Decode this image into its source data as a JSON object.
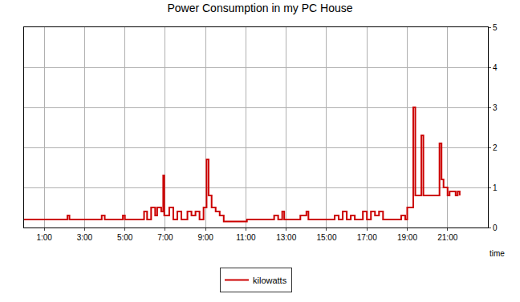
{
  "chart_data": {
    "type": "line",
    "title": "Power Consumption in my PC House",
    "x_label": "time",
    "x": [
      0,
      2.1,
      2.15,
      2.25,
      3.8,
      3.85,
      4.0,
      4.9,
      5.0,
      5.9,
      5.95,
      6.1,
      6.3,
      6.5,
      6.6,
      6.8,
      6.9,
      6.95,
      7.2,
      7.4,
      7.6,
      7.8,
      8.1,
      8.3,
      8.5,
      8.7,
      8.9,
      9.05,
      9.15,
      9.3,
      9.5,
      9.7,
      9.9,
      11.0,
      11.05,
      12.3,
      12.4,
      12.6,
      12.8,
      12.9,
      13.6,
      13.7,
      14.0,
      14.1,
      15.3,
      15.4,
      15.6,
      15.8,
      16.0,
      16.2,
      16.4,
      16.8,
      17.0,
      17.2,
      17.4,
      17.6,
      17.8,
      18.5,
      18.7,
      18.9,
      19.0,
      19.2,
      19.3,
      19.4,
      19.6,
      19.7,
      19.8,
      20.5,
      20.6,
      20.7,
      20.8,
      20.9,
      21.0,
      21.1,
      21.3,
      21.4,
      21.5,
      21.6
    ],
    "series": [
      {
        "name": "kilowatts",
        "color": "#cc0000",
        "values": [
          0.2,
          0.2,
          0.3,
          0.2,
          0.2,
          0.3,
          0.2,
          0.3,
          0.2,
          0.2,
          0.4,
          0.2,
          0.5,
          0.3,
          0.5,
          0.4,
          1.3,
          0.3,
          0.5,
          0.2,
          0.4,
          0.2,
          0.4,
          0.3,
          0.4,
          0.2,
          0.5,
          1.7,
          0.8,
          0.5,
          0.4,
          0.3,
          0.15,
          0.15,
          0.2,
          0.2,
          0.3,
          0.2,
          0.4,
          0.2,
          0.2,
          0.3,
          0.4,
          0.2,
          0.2,
          0.3,
          0.2,
          0.4,
          0.2,
          0.3,
          0.2,
          0.4,
          0.2,
          0.4,
          0.3,
          0.4,
          0.2,
          0.2,
          0.3,
          0.2,
          0.5,
          0.5,
          3.0,
          0.8,
          0.8,
          2.3,
          0.8,
          0.8,
          2.1,
          1.2,
          1.0,
          1.0,
          0.8,
          0.9,
          0.9,
          0.8,
          0.9,
          0.8
        ]
      }
    ],
    "xlim": [
      0,
      23
    ],
    "xticks": [
      {
        "value": 1,
        "label": "1:00"
      },
      {
        "value": 3,
        "label": "3:00"
      },
      {
        "value": 5,
        "label": "5:00"
      },
      {
        "value": 7,
        "label": "7:00"
      },
      {
        "value": 9,
        "label": "9:00"
      },
      {
        "value": 11,
        "label": "11:00"
      },
      {
        "value": 13,
        "label": "13:00"
      },
      {
        "value": 15,
        "label": "15:00"
      },
      {
        "value": 17,
        "label": "17:00"
      },
      {
        "value": 19,
        "label": "19:00"
      },
      {
        "value": 21,
        "label": "21:00"
      }
    ],
    "ylim": [
      0,
      5
    ],
    "yticks": [
      0,
      1,
      2,
      3,
      4,
      5
    ],
    "grid": true,
    "legend": "bottom"
  }
}
